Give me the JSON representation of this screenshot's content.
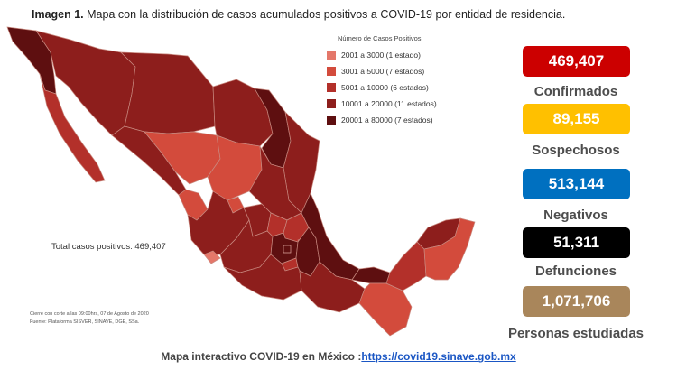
{
  "header": {
    "title_bold": "Imagen 1.",
    "title_text": " Mapa con la distribución de casos acumulados positivos a COVID-19 por entidad de residencia."
  },
  "legend": {
    "title": "Número de Casos Positivos",
    "items": [
      {
        "label": "2001 a 3000 (1 estado)",
        "color": "#e4776a"
      },
      {
        "label": "3001 a 5000 (7 estados)",
        "color": "#d34b3c"
      },
      {
        "label": "5001 a 10000 (6 estados)",
        "color": "#b3302a"
      },
      {
        "label": "10001 a 20000 (11 estados)",
        "color": "#8d1e1c"
      },
      {
        "label": "20001 a 80000 (7 estados)",
        "color": "#5e0f10"
      }
    ]
  },
  "total_label": "Total casos positivos: 469,407",
  "notes": {
    "cutoff": "Cierre con corte a las 09:00hrs, 07 de Agosto de 2020",
    "source": "Fuente: Plataforma SISVER, SINAVE, DGE, SSa."
  },
  "stats": [
    {
      "value": "469,407",
      "label": "Confirmados",
      "bg": "#cc0000",
      "fg": "#ffffff"
    },
    {
      "value": "89,155",
      "label": "Sospechosos",
      "bg": "#ffc000",
      "fg": "#ffffff"
    },
    {
      "value": "513,144",
      "label": "Negativos",
      "bg": "#0070c0",
      "fg": "#ffffff"
    },
    {
      "value": "51,311",
      "label": "Defunciones",
      "bg": "#000000",
      "fg": "#ffffff"
    },
    {
      "value": "1,071,706",
      "label": "Personas estudiadas",
      "bg": "#a9865b",
      "fg": "#ffffff"
    }
  ],
  "footer": {
    "text": "Mapa interactivo COVID-19 en México :",
    "link": "https://covid19.sinave.gob.mx"
  }
}
